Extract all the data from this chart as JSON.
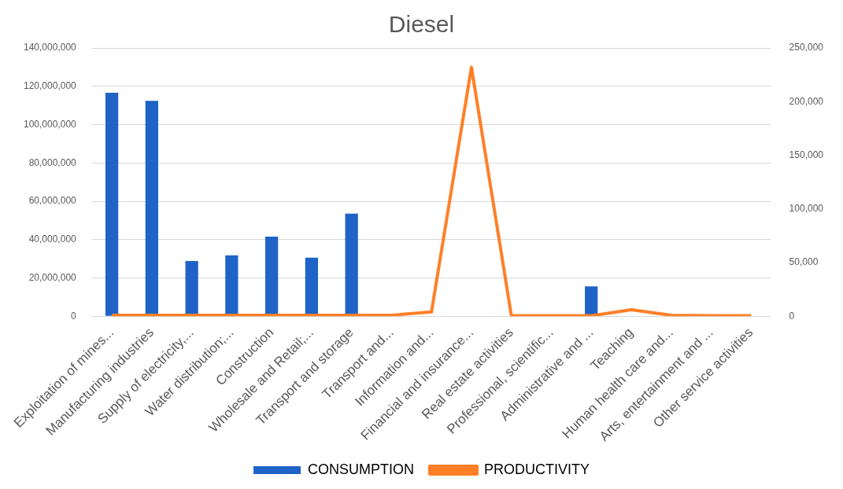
{
  "chart_data": {
    "type": "bar",
    "title": "Diesel",
    "categories": [
      "Exploitation of mines...",
      "Manufacturing industries",
      "Supply of electricity,...",
      "Water distribution;...",
      "Construction",
      "Wholesale and Retail;...",
      "Transport and storage",
      "Transport and...",
      "Information and...",
      "Financial and insurance...",
      "Real estate activities",
      "Professional, scientific...",
      "Administrative and ...",
      "Teaching",
      "Human health care and...",
      "Arts, entertainment and ...",
      "Other service activities"
    ],
    "series": [
      {
        "name": "CONSUMPTION",
        "color": "#1f63c6",
        "values": [
          116600000,
          112400000,
          28800000,
          31800000,
          41500000,
          30600000,
          53500000,
          0,
          0,
          0,
          0,
          0,
          15600000,
          0,
          0,
          0,
          0
        ]
      },
      {
        "name": "PRODUCTIVITY",
        "type": "line",
        "axis": "y2",
        "color": "#ff7f27",
        "values": [
          1000,
          1000,
          1000,
          1000,
          1000,
          1000,
          1000,
          1000,
          4000,
          232000,
          500,
          500,
          500,
          6000,
          1000,
          500,
          500
        ]
      }
    ],
    "ylim": [
      0,
      140000000
    ],
    "yticks": [
      0,
      {
        "value": 20000000,
        "label": "20,000,000"
      },
      {
        "value": 40000000,
        "label": "40,000,000"
      },
      {
        "value": 60000000,
        "label": "60,000,000"
      },
      {
        "value": 80000000,
        "label": "80,000,000"
      },
      {
        "value": 100000000,
        "label": "100,000,000"
      },
      {
        "value": 120000000,
        "label": "120,000,000"
      },
      {
        "value": 140000000,
        "label": "140,000,000"
      }
    ],
    "y2lim": [
      0,
      250000
    ],
    "y2ticks": [
      0,
      {
        "value": 50000,
        "label": "50,000"
      },
      {
        "value": 100000,
        "label": "100,000"
      },
      {
        "value": 150000,
        "label": "150,000"
      },
      {
        "value": 200000,
        "label": "200,000"
      },
      {
        "value": 250000,
        "label": "250,000"
      }
    ],
    "grid": "y",
    "legend": "bottom",
    "marker": "none"
  }
}
